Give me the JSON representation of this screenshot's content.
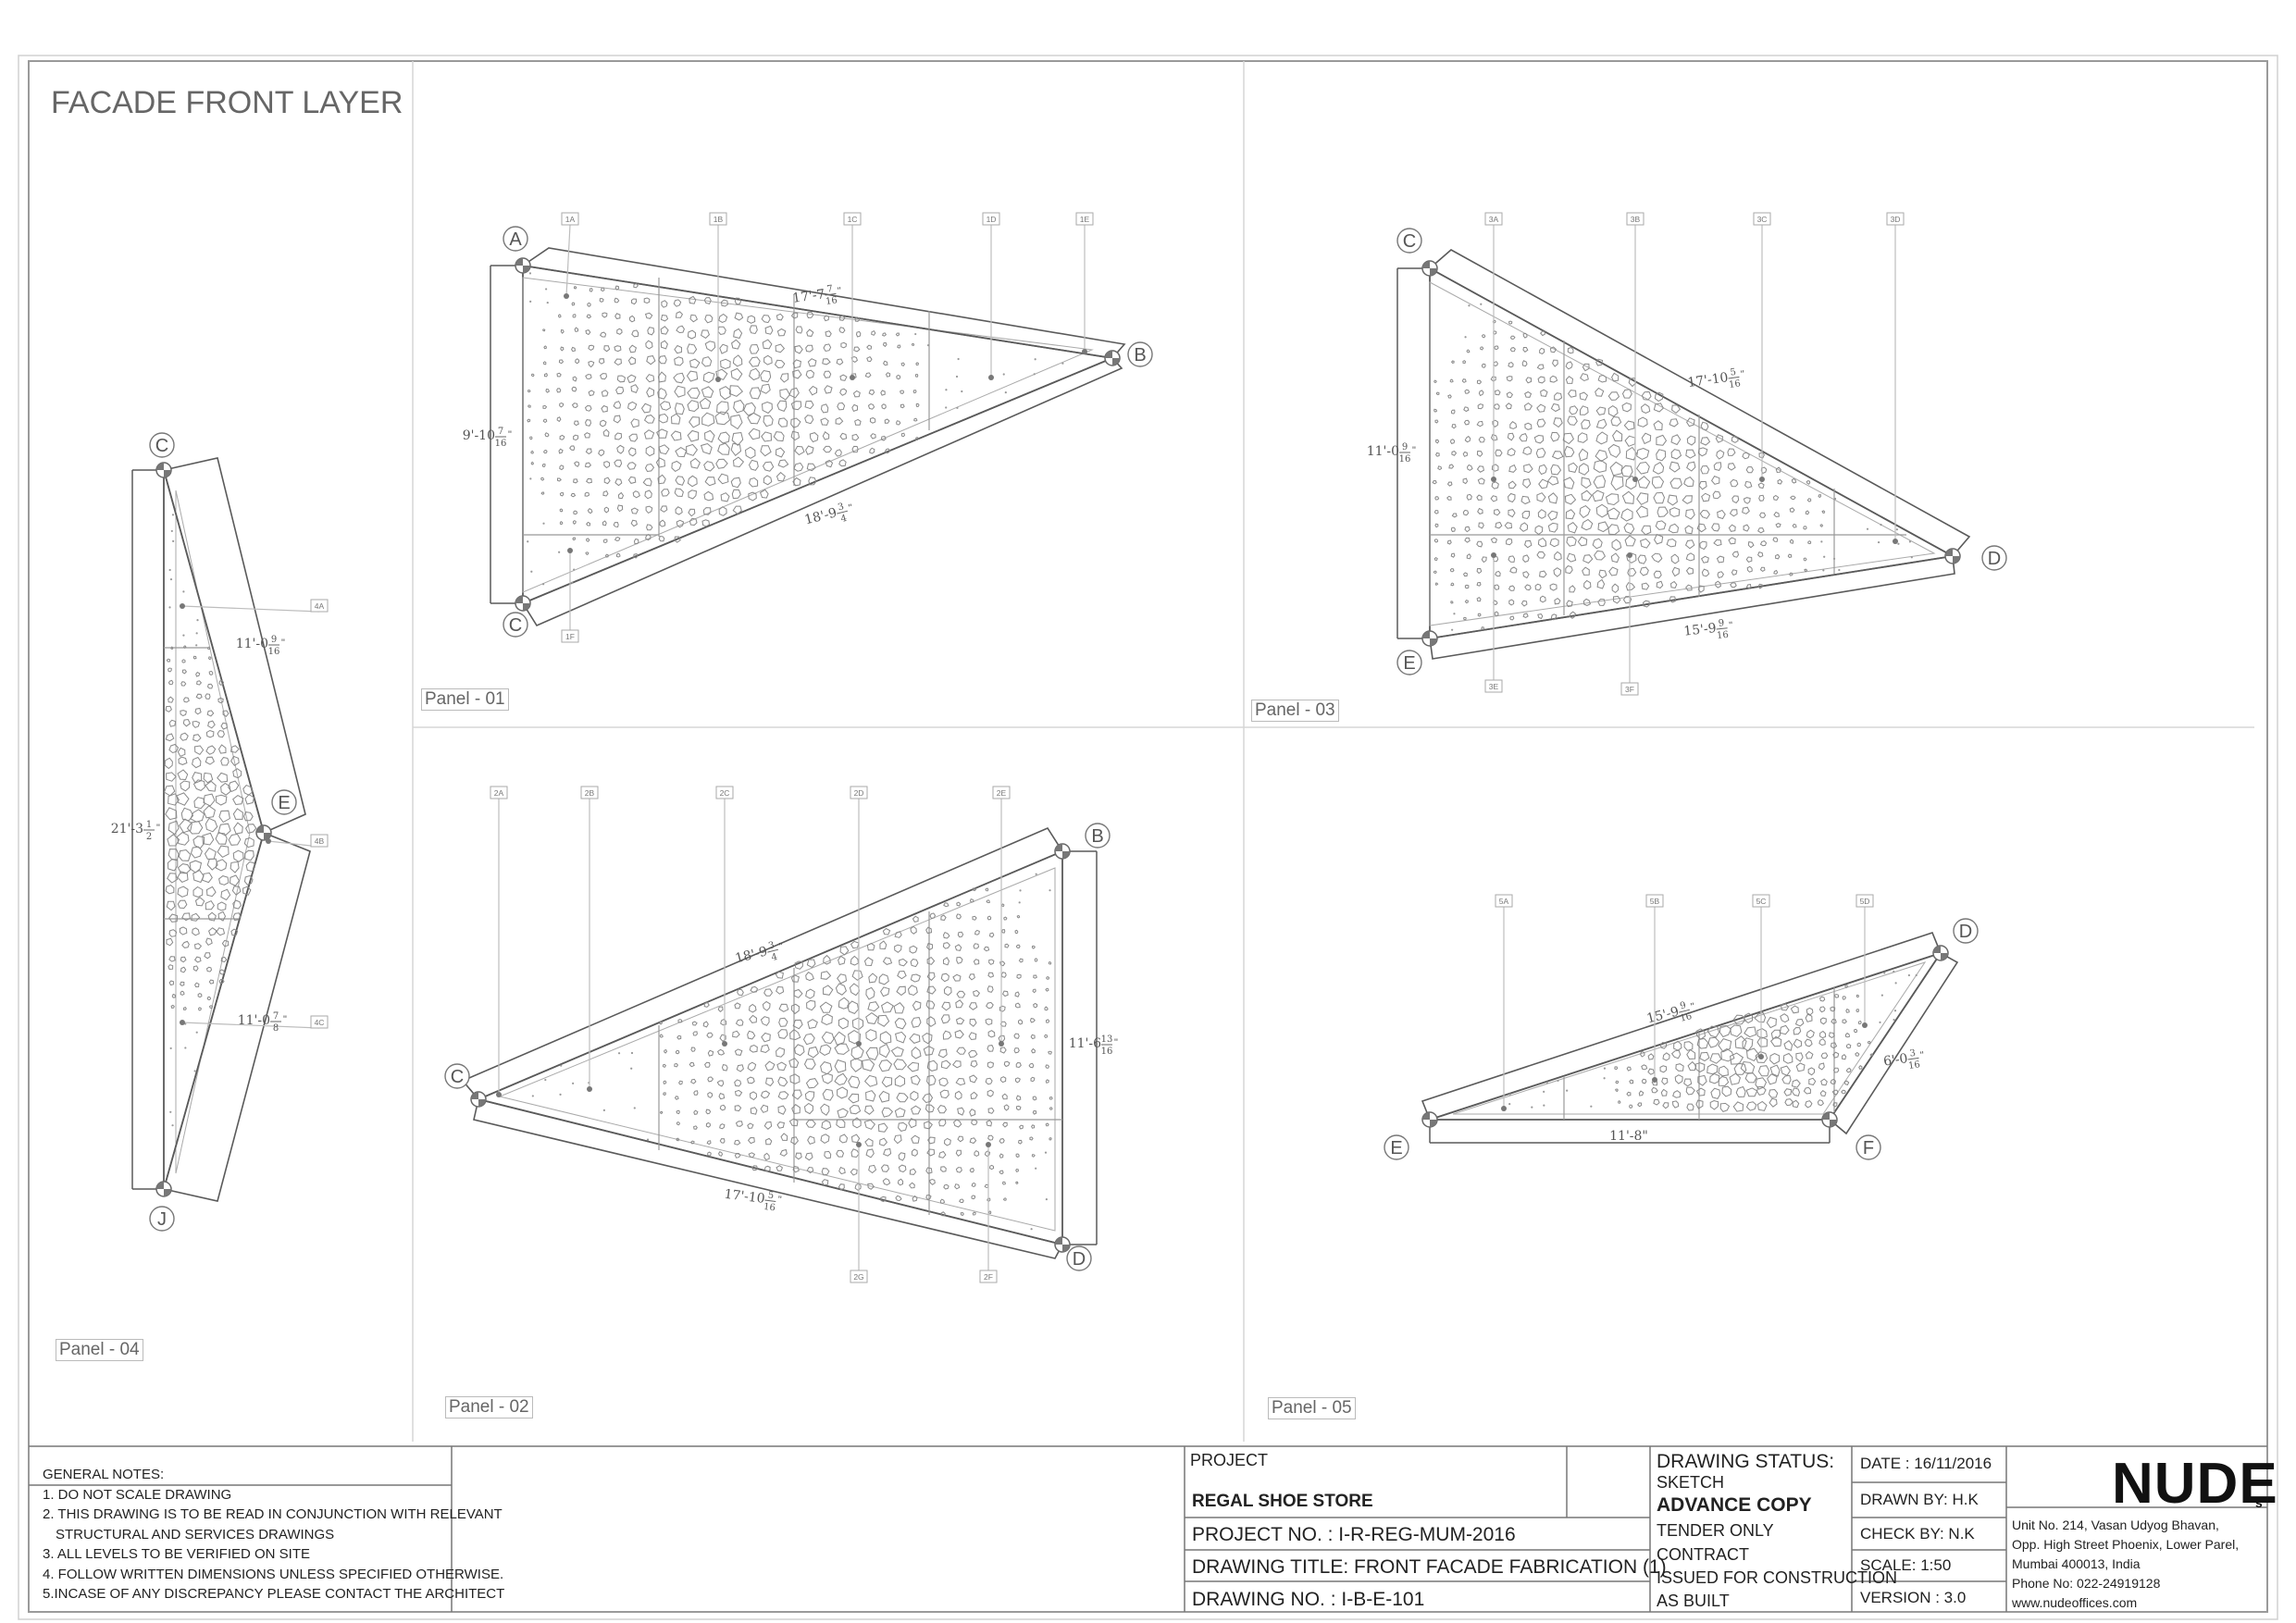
{
  "sheet": {
    "title": "FACADE FRONT LAYER"
  },
  "panels": [
    {
      "id": "p1",
      "label": "Panel - 01",
      "points": {
        "A": "A",
        "B": "B",
        "C": "C"
      },
      "tags": [
        "1A",
        "1B",
        "1C",
        "1D",
        "1E",
        "1F"
      ],
      "dims": {
        "top": "17'-7",
        "top_frac": "7/16",
        "left": "9'-10",
        "left_frac": "7/16",
        "bottom": "18'-9",
        "bottom_frac": "3/4"
      }
    },
    {
      "id": "p2",
      "label": "Panel - 02",
      "points": {
        "B": "B",
        "C": "C",
        "D": "D"
      },
      "tags": [
        "2A",
        "2B",
        "2C",
        "2D",
        "2E",
        "2F",
        "2G"
      ],
      "dims": {
        "top": "18'-9",
        "top_frac": "3/4",
        "right": "11'-6",
        "right_frac": "13/16",
        "bottom": "17'-10",
        "bottom_frac": "5/16"
      }
    },
    {
      "id": "p3",
      "label": "Panel - 03",
      "points": {
        "C": "C",
        "D": "D",
        "E": "E"
      },
      "tags": [
        "3A",
        "3B",
        "3C",
        "3D",
        "3E",
        "3F"
      ],
      "dims": {
        "top": "17'-10",
        "top_frac": "5/16",
        "left": "11'-0",
        "left_frac": "9/16",
        "bottom": "15'-9",
        "bottom_frac": "9/16"
      }
    },
    {
      "id": "p4",
      "label": "Panel - 04",
      "points": {
        "C": "C",
        "E": "E",
        "J": "J"
      },
      "tags": [
        "4A",
        "4B",
        "4C"
      ],
      "dims": {
        "left": "21'-3",
        "left_frac": "1/2",
        "upper": "11'-0",
        "upper_frac": "9/16",
        "lower": "11'-0",
        "lower_frac": "7/8"
      }
    },
    {
      "id": "p5",
      "label": "Panel - 05",
      "points": {
        "D": "D",
        "E": "E",
        "F": "F"
      },
      "tags": [
        "5A",
        "5B",
        "5C",
        "5D"
      ],
      "dims": {
        "top": "15'-9",
        "top_frac": "9/16",
        "right": "6'-0",
        "right_frac": "3/16",
        "bottom": "11'-8\""
      }
    }
  ],
  "general_notes": {
    "heading": "GENERAL NOTES:",
    "items": [
      "1. DO NOT SCALE DRAWING",
      "2. THIS DRAWING IS TO BE READ IN CONJUNCTION WITH RELEVANT",
      "    STRUCTURAL AND SERVICES DRAWINGS",
      "3. ALL LEVELS TO BE VERIFIED ON SITE",
      "4. FOLLOW WRITTEN DIMENSIONS UNLESS SPECIFIED OTHERWISE.",
      "5.INCASE OF ANY DISCREPANCY PLEASE CONTACT THE ARCHITECT"
    ]
  },
  "title_block": {
    "project_label": "PROJECT",
    "project_name": "REGAL SHOE STORE",
    "project_no": "PROJECT NO. : I-R-REG-MUM-2016",
    "drawing_title": "DRAWING TITLE: FRONT FACADE FABRICATION (1)",
    "drawing_no": "DRAWING NO. : I-B-E-101",
    "status_label": "DRAWING STATUS:",
    "status_items": [
      "SKETCH",
      "ADVANCE COPY",
      "TENDER ONLY",
      "CONTRACT",
      "ISSUED FOR CONSTRUCTION",
      "AS BUILT"
    ],
    "date": "DATE : 16/11/2016",
    "drawn_by": "DRAWN BY: H.K",
    "check_by": "CHECK BY: N.K",
    "scale": "SCALE: 1:50",
    "version": "VERSION : 3.0",
    "firm_logo": "NUDE",
    "firm_logo_suffix": "s",
    "address": [
      "Unit No. 214, Vasan Udyog Bhavan,",
      "Opp. High Street Phoenix, Lower Parel,",
      "Mumbai 400013, India",
      "Phone No: 022-24919128",
      "www.nudeoffices.com"
    ]
  },
  "colors": {
    "line": "#5a5a5a",
    "light": "#bdbdbd",
    "text": "#555555"
  }
}
